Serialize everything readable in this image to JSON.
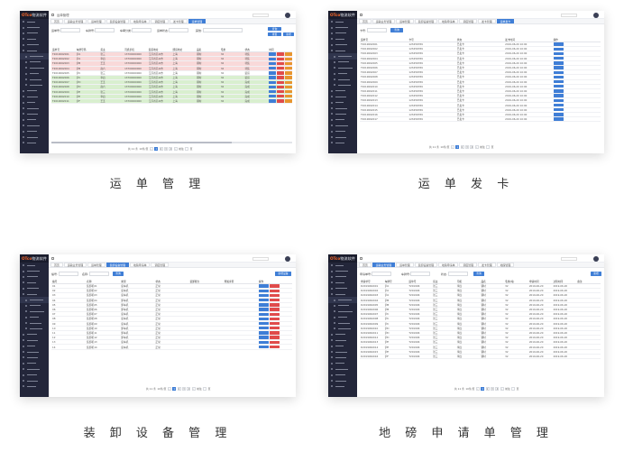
{
  "brand": {
    "logo_accent": "OTco",
    "logo_text": "物流软件"
  },
  "colors": {
    "accent": "#3f7ed6",
    "danger": "#e04b4b",
    "warning": "#e8952e",
    "sidebar": "#23263a",
    "row_pink": "#f9d9d9",
    "row_green": "#d9efcf"
  },
  "captions": [
    "运 单 管 理",
    "运 单 发 卡",
    "装 卸 设 备 管 理",
    "地 磅 申 请 单 管 理"
  ],
  "topbar": {
    "crumb": "运单管理"
  },
  "panel1": {
    "tabs": [
      "首页",
      "运输业务管理",
      "运单管理",
      "装卸设备管理",
      "地磅申请单",
      "调度管理",
      "发卡管理",
      "运单管理"
    ],
    "filters": {
      "l1": "运单号:",
      "l2": "车牌号:",
      "l3": "车辆分类:",
      "l4": "运单状态:",
      "l5": "其他:",
      "b1": "查询",
      "b2": "重置",
      "b3": "新增"
    },
    "headers": [
      "运单号",
      "车牌号码",
      "货主",
      "司机手机",
      "装货地址",
      "卸货地址",
      "品名",
      "毛重",
      "状态",
      "时间"
    ],
    "rows": [
      [
        "T2019062001",
        "沪A",
        "张三",
        "13700000000",
        "江苏省苏州市",
        "上海",
        "钢材",
        "32",
        "待装",
        "2019-06-20"
      ],
      [
        "T2019062002",
        "沪A",
        "李四",
        "13700000000",
        "江苏省苏州市",
        "上海",
        "钢材",
        "32",
        "待装",
        "2019-06-20"
      ],
      [
        "T2019062003",
        "沪B",
        "王五",
        "13700000000",
        "江苏省苏州市",
        "上海",
        "钢材",
        "32",
        "待装",
        "2019-06-20"
      ],
      [
        "T2019062004",
        "沪B",
        "赵六",
        "13700000000",
        "江苏省苏州市",
        "上海",
        "钢材",
        "32",
        "待装",
        "2019-06-20"
      ],
      [
        "T2019062005",
        "沪C",
        "张三",
        "13700000000",
        "江苏省苏州市",
        "上海",
        "钢材",
        "32",
        "装货",
        "2019-06-20"
      ],
      [
        "T2019062006",
        "沪C",
        "李四",
        "13700000000",
        "江苏省苏州市",
        "上海",
        "钢材",
        "32",
        "装货",
        "2019-06-20"
      ],
      [
        "T2019062007",
        "沪D",
        "王五",
        "13700000000",
        "江苏省苏州市",
        "上海",
        "钢材",
        "32",
        "完成",
        "2019-06-20"
      ],
      [
        "T2019062008",
        "沪D",
        "赵六",
        "13700000000",
        "江苏省苏州市",
        "上海",
        "钢材",
        "32",
        "完成",
        "2019-06-20"
      ],
      [
        "T2019062009",
        "沪E",
        "张三",
        "13700000000",
        "江苏省苏州市",
        "上海",
        "钢材",
        "32",
        "完成",
        "2019-06-20"
      ],
      [
        "T2019062010",
        "沪E",
        "李四",
        "13700000000",
        "江苏省苏州市",
        "上海",
        "钢材",
        "32",
        "完成",
        "2019-06-20"
      ],
      [
        "T2019062011",
        "沪F",
        "王五",
        "13700000000",
        "江苏省苏州市",
        "上海",
        "钢材",
        "32",
        "完成",
        "2019-06-20"
      ]
    ]
  },
  "panel2": {
    "tabs": [
      "首页",
      "运输业务管理",
      "运单管理",
      "装卸设备管理",
      "地磅申请单",
      "调度管理",
      "发卡管理",
      "运单发卡"
    ],
    "filters": {
      "l1": "卡号:",
      "b1": "查询"
    },
    "headers": [
      "运单号",
      "卡号",
      "状态",
      "发卡时间",
      "操作"
    ],
    "rows": [
      [
        "T2019062001",
        "123456789",
        "已发卡",
        "2019-06-20 10:00"
      ],
      [
        "T2019062002",
        "123456789",
        "已发卡",
        "2019-06-20 10:00"
      ],
      [
        "T2019062003",
        "123456789",
        "已发卡",
        "2019-06-20 10:00"
      ],
      [
        "T2019062004",
        "123456789",
        "已发卡",
        "2019-06-20 10:00"
      ],
      [
        "T2019062005",
        "123456789",
        "已发卡",
        "2019-06-20 10:00"
      ],
      [
        "T2019062006",
        "123456789",
        "已发卡",
        "2019-06-20 10:00"
      ],
      [
        "T2019062007",
        "123456789",
        "已发卡",
        "2019-06-20 10:00"
      ],
      [
        "T2019062008",
        "123456789",
        "已发卡",
        "2019-06-20 10:00"
      ],
      [
        "T2019062009",
        "123456789",
        "已发卡",
        "2019-06-20 10:00"
      ],
      [
        "T2019062010",
        "123456789",
        "已发卡",
        "2019-06-20 10:00"
      ],
      [
        "T2019062011",
        "123456789",
        "已发卡",
        "2019-06-20 10:00"
      ],
      [
        "T2019062012",
        "123456789",
        "已发卡",
        "2019-06-20 10:00"
      ],
      [
        "T2019062013",
        "123456789",
        "已发卡",
        "2019-06-20 10:00"
      ],
      [
        "T2019062014",
        "123456789",
        "已发卡",
        "2019-06-20 10:00"
      ],
      [
        "T2019062015",
        "123456789",
        "已发卡",
        "2019-06-20 10:00"
      ],
      [
        "T2019062016",
        "123456789",
        "已发卡",
        "2019-06-20 10:00"
      ],
      [
        "T2019062017",
        "123456789",
        "已发卡",
        "2019-06-20 10:00"
      ]
    ]
  },
  "panel3": {
    "tabs": [
      "首页",
      "运输业务管理",
      "运单管理",
      "装卸设备管理",
      "地磅申请单",
      "调度管理"
    ],
    "filters": {
      "l1": "编号:",
      "l2": "名称:",
      "b1": "查询",
      "b2": "新增设备"
    },
    "headers": [
      "编号",
      "名称",
      "类型",
      "状态",
      "装卸能力",
      "所属库区",
      "操作"
    ],
    "rows": [
      [
        "01",
        "装卸机01",
        "装车机",
        "正常",
        "",
        "",
        "A区"
      ],
      [
        "02",
        "装卸机02",
        "装车机",
        "正常",
        "",
        "",
        "A区"
      ],
      [
        "03",
        "装卸机03",
        "装车机",
        "正常",
        "",
        "",
        "A区"
      ],
      [
        "04",
        "装卸机04",
        "卸车机",
        "正常",
        "",
        "",
        "B区"
      ],
      [
        "05",
        "装卸机05",
        "卸车机",
        "正常",
        "",
        "",
        "B区"
      ],
      [
        "06",
        "装卸机06",
        "卸车机",
        "正常",
        "",
        "",
        "B区"
      ],
      [
        "07",
        "装卸机07",
        "装车机",
        "正常",
        "",
        "",
        "C区"
      ],
      [
        "08",
        "装卸机08",
        "装车机",
        "正常",
        "",
        "",
        "C区"
      ],
      [
        "09",
        "装卸机09",
        "装车机",
        "正常",
        "",
        "",
        "C区"
      ],
      [
        "10",
        "装卸机10",
        "卸车机",
        "正常",
        "",
        "",
        "D区"
      ],
      [
        "11",
        "装卸机11",
        "卸车机",
        "正常",
        "",
        "",
        "D区"
      ],
      [
        "12",
        "装卸机12",
        "卸车机",
        "正常",
        "",
        "",
        "D区"
      ],
      [
        "13",
        "装卸机13",
        "装车机",
        "正常",
        "",
        "",
        "E区"
      ],
      [
        "14",
        "装卸机14",
        "装车机",
        "正常",
        "",
        "",
        "E区"
      ]
    ]
  },
  "panel4": {
    "tabs": [
      "首页",
      "运输业务管理",
      "运单管理",
      "装卸设备管理",
      "地磅申请单",
      "调度管理",
      "发卡管理",
      "地磅管理"
    ],
    "filters": {
      "l1": "申请单号:",
      "l2": "车牌号:",
      "l3": "状态:",
      "b1": "查询",
      "b2": "新增"
    },
    "headers": [
      "申请单号",
      "车牌号",
      "运单号",
      "货主",
      "司机",
      "品名",
      "毛重(吨)",
      "申请时间",
      "过磅时间",
      "备注"
    ],
    "rows": [
      [
        "D2019062001",
        "沪A",
        "T201906",
        "张三",
        "李四",
        "钢材",
        "32",
        "2019-06-20",
        "2019-06-20"
      ],
      [
        "D2019062002",
        "沪A",
        "T201906",
        "张三",
        "李四",
        "钢材",
        "32",
        "2019-06-20",
        "2019-06-20"
      ],
      [
        "D2019062003",
        "沪A",
        "T201906",
        "张三",
        "李四",
        "钢材",
        "32",
        "2019-06-20",
        "2019-06-20"
      ],
      [
        "D2019062004",
        "沪B",
        "T201906",
        "张三",
        "李四",
        "钢材",
        "32",
        "2019-06-20",
        "2019-06-20"
      ],
      [
        "D2019062005",
        "沪B",
        "T201906",
        "张三",
        "李四",
        "钢材",
        "32",
        "2019-06-20",
        "2019-06-20"
      ],
      [
        "D2019062006",
        "沪B",
        "T201906",
        "张三",
        "李四",
        "钢材",
        "32",
        "2019-06-20",
        "2019-06-20"
      ],
      [
        "D2019062007",
        "沪C",
        "T201906",
        "张三",
        "李四",
        "钢材",
        "32",
        "2019-06-20",
        "2019-06-20"
      ],
      [
        "D2019062008",
        "沪C",
        "T201906",
        "张三",
        "李四",
        "钢材",
        "32",
        "2019-06-20",
        "2019-06-20"
      ],
      [
        "D2019062009",
        "沪C",
        "T201906",
        "张三",
        "李四",
        "钢材",
        "32",
        "2019-06-20",
        "2019-06-20"
      ],
      [
        "D2019062010",
        "沪D",
        "T201906",
        "张三",
        "李四",
        "钢材",
        "32",
        "2019-06-20",
        "2019-06-20"
      ],
      [
        "D2019062011",
        "沪D",
        "T201906",
        "张三",
        "李四",
        "钢材",
        "32",
        "2019-06-20",
        "2019-06-20"
      ],
      [
        "D2019062012",
        "沪D",
        "T201906",
        "张三",
        "李四",
        "钢材",
        "32",
        "2019-06-20",
        "2019-06-20"
      ],
      [
        "D2019062013",
        "沪E",
        "T201906",
        "张三",
        "李四",
        "钢材",
        "32",
        "2019-06-20",
        "2019-06-20"
      ],
      [
        "D2019062014",
        "沪E",
        "T201906",
        "张三",
        "李四",
        "钢材",
        "32",
        "2019-06-20",
        "2019-06-20"
      ],
      [
        "D2019062015",
        "沪E",
        "T201906",
        "张三",
        "李四",
        "钢材",
        "32",
        "2019-06-20",
        "2019-06-20"
      ],
      [
        "D2019062016",
        "沪F",
        "T201906",
        "张三",
        "李四",
        "钢材",
        "32",
        "2019-06-20",
        "2019-06-20"
      ]
    ]
  },
  "pager": {
    "total": "共 11 条",
    "page_size": "10条/页",
    "pages": [
      "1",
      "2",
      "3",
      "4"
    ],
    "goto": "前往",
    "page_unit": "页"
  }
}
